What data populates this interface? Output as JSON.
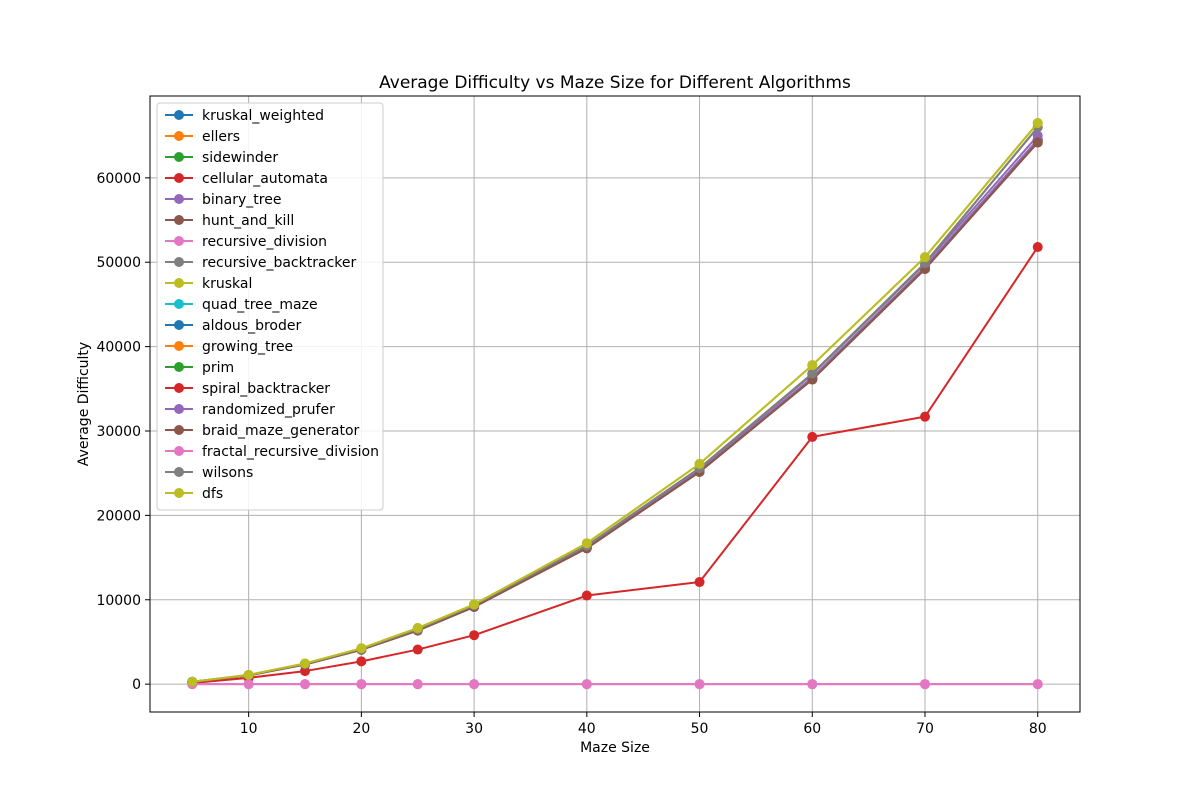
{
  "chart_data": {
    "type": "line",
    "title": "Average Difficulty vs Maze Size for Different Algorithms",
    "xlabel": "Maze Size",
    "ylabel": "Average Difficulty",
    "xlim": [
      1.25,
      83.75
    ],
    "ylim": [
      -3300,
      69700
    ],
    "xticks": [
      10,
      20,
      30,
      40,
      50,
      60,
      70,
      80
    ],
    "yticks": [
      0,
      10000,
      20000,
      30000,
      40000,
      50000,
      60000
    ],
    "grid": true,
    "legend_position": "upper-left",
    "x": [
      5,
      10,
      15,
      20,
      25,
      30,
      40,
      50,
      60,
      70,
      80
    ],
    "series": [
      {
        "name": "kruskal_weighted",
        "color": "#1f77b4",
        "values": [
          270,
          1050,
          2350,
          4100,
          6400,
          9200,
          16200,
          25300,
          36300,
          49400,
          64500
        ]
      },
      {
        "name": "ellers",
        "color": "#ff7f0e",
        "values": [
          270,
          1050,
          2350,
          4100,
          6400,
          9200,
          16200,
          25300,
          36300,
          49400,
          64500
        ]
      },
      {
        "name": "sidewinder",
        "color": "#2ca02c",
        "values": [
          270,
          1050,
          2350,
          4100,
          6400,
          9200,
          16200,
          25300,
          36300,
          49400,
          64500
        ]
      },
      {
        "name": "cellular_automata",
        "color": "#d62728",
        "values": [
          270,
          1050,
          2350,
          4100,
          6400,
          9200,
          16200,
          25200,
          36200,
          49300,
          64200
        ]
      },
      {
        "name": "binary_tree",
        "color": "#9467bd",
        "values": [
          270,
          1060,
          2380,
          4150,
          6450,
          9300,
          16350,
          25500,
          36700,
          49800,
          65000
        ]
      },
      {
        "name": "hunt_and_kill",
        "color": "#8c564b",
        "values": [
          265,
          1040,
          2330,
          4080,
          6350,
          9150,
          16100,
          25150,
          36100,
          49200,
          64200
        ]
      },
      {
        "name": "recursive_division",
        "color": "#e377c2",
        "values": [
          0,
          0,
          0,
          0,
          0,
          0,
          0,
          0,
          0,
          0,
          0
        ]
      },
      {
        "name": "recursive_backtracker",
        "color": "#7f7f7f",
        "values": [
          275,
          1070,
          2400,
          4180,
          6500,
          9350,
          16400,
          25600,
          36800,
          49900,
          66000
        ]
      },
      {
        "name": "kruskal",
        "color": "#bcbd22",
        "values": [
          280,
          1100,
          2450,
          4250,
          6650,
          9450,
          16700,
          26100,
          37800,
          50600,
          66500
        ]
      },
      {
        "name": "quad_tree_maze",
        "color": "#17becf",
        "values": [
          270,
          1050,
          2350,
          4100,
          6400,
          9200,
          16200,
          25300,
          36300,
          49400,
          64500
        ]
      },
      {
        "name": "aldous_broder",
        "color": "#1f77b4",
        "values": [
          270,
          1050,
          2350,
          4100,
          6400,
          9200,
          16200,
          25300,
          36300,
          49400,
          64500
        ]
      },
      {
        "name": "growing_tree",
        "color": "#ff7f0e",
        "values": [
          270,
          1050,
          2350,
          4100,
          6400,
          9200,
          16200,
          25300,
          36300,
          49400,
          64500
        ]
      },
      {
        "name": "prim",
        "color": "#2ca02c",
        "values": [
          270,
          1050,
          2350,
          4100,
          6400,
          9200,
          16200,
          25300,
          36300,
          49400,
          64500
        ]
      },
      {
        "name": "spiral_backtracker",
        "color": "#d62728",
        "values": [
          130,
          750,
          1550,
          2700,
          4100,
          5800,
          10500,
          12100,
          29300,
          31700,
          51800
        ]
      },
      {
        "name": "randomized_prufer",
        "color": "#9467bd",
        "values": [
          270,
          1050,
          2350,
          4100,
          6400,
          9200,
          16200,
          25300,
          36300,
          49400,
          64500
        ]
      },
      {
        "name": "braid_maze_generator",
        "color": "#8c564b",
        "values": [
          265,
          1040,
          2330,
          4080,
          6350,
          9150,
          16100,
          25150,
          36100,
          49200,
          64200
        ]
      },
      {
        "name": "fractal_recursive_division",
        "color": "#e377c2",
        "values": [
          0,
          0,
          0,
          0,
          0,
          0,
          0,
          0,
          0,
          0,
          0
        ]
      },
      {
        "name": "wilsons",
        "color": "#7f7f7f",
        "values": [
          275,
          1070,
          2400,
          4180,
          6500,
          9350,
          16400,
          25600,
          36800,
          49900,
          66000
        ]
      },
      {
        "name": "dfs",
        "color": "#bcbd22",
        "values": [
          280,
          1100,
          2450,
          4250,
          6650,
          9450,
          16700,
          26100,
          37800,
          50600,
          66500
        ]
      }
    ]
  }
}
